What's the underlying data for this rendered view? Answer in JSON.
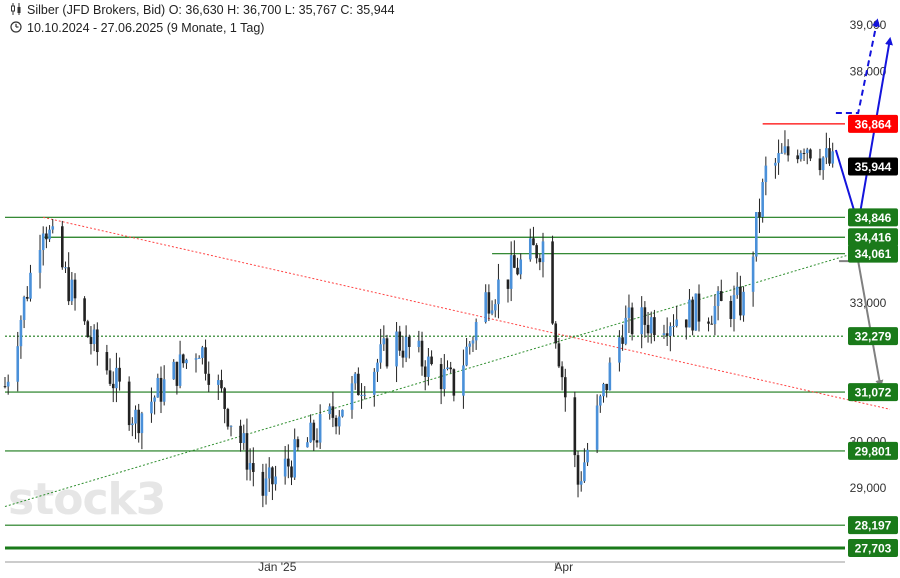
{
  "header": {
    "line1": "Silber (JFD Brokers, Bid)  O: 36,630  H: 36,700  L: 35,767  C: 35,944",
    "line2": "10.10.2024 - 27.06.2025  (9 Monate, 1 Tag)"
  },
  "watermark": "stock3",
  "chart_data": {
    "type": "candlestick",
    "instrument": "Silber (JFD Brokers, Bid)",
    "ohlc_last": {
      "open": 36.63,
      "high": 36.7,
      "low": 35.767,
      "close": 35.944
    },
    "period": "10.10.2024 - 27.06.2025",
    "ylim": [
      27.6,
      39.4
    ],
    "y_ticks": [
      {
        "value": 29.0,
        "label": "29,000"
      },
      {
        "value": 30.0,
        "label": "30,000"
      },
      {
        "value": 33.0,
        "label": "33,000"
      },
      {
        "value": 38.0,
        "label": "38,000"
      },
      {
        "value": 39.0,
        "label": "39,000"
      }
    ],
    "x_ticks": [
      {
        "date": "2025-01-01",
        "label": "Jan '25"
      },
      {
        "date": "2025-04-01",
        "label": "Apr"
      }
    ],
    "price_path": [
      {
        "date": "2024-10-10",
        "close": 31.2
      },
      {
        "date": "2024-10-22",
        "close": 34.8
      },
      {
        "date": "2024-11-05",
        "close": 32.3
      },
      {
        "date": "2024-11-20",
        "close": 30.5
      },
      {
        "date": "2024-12-10",
        "close": 32.1
      },
      {
        "date": "2024-12-30",
        "close": 28.9
      },
      {
        "date": "2025-01-20",
        "close": 30.5
      },
      {
        "date": "2025-02-10",
        "close": 32.2
      },
      {
        "date": "2025-02-28",
        "close": 31.2
      },
      {
        "date": "2025-03-10",
        "close": 33.1
      },
      {
        "date": "2025-03-28",
        "close": 34.3
      },
      {
        "date": "2025-04-08",
        "close": 29.1
      },
      {
        "date": "2025-04-22",
        "close": 32.5
      },
      {
        "date": "2025-05-15",
        "close": 32.8
      },
      {
        "date": "2025-05-30",
        "close": 33.0
      },
      {
        "date": "2025-06-06",
        "close": 35.8
      },
      {
        "date": "2025-06-18",
        "close": 36.5
      },
      {
        "date": "2025-06-27",
        "close": 35.944
      }
    ],
    "levels": [
      {
        "label": "36,864",
        "value": 36.864,
        "color": "#ff0000"
      },
      {
        "label": "35,944",
        "value": 35.944,
        "color": "#000000"
      },
      {
        "label": "34,846",
        "value": 34.846,
        "color": "#1a7a1a"
      },
      {
        "label": "34,416",
        "value": 34.416,
        "color": "#1a7a1a"
      },
      {
        "label": "34,061",
        "value": 34.061,
        "color": "#1a7a1a"
      },
      {
        "label": "32,279",
        "value": 32.279,
        "color": "#1a7a1a"
      },
      {
        "label": "31,072",
        "value": 31.072,
        "color": "#1a7a1a"
      },
      {
        "label": "29,801",
        "value": 29.801,
        "color": "#1a7a1a"
      },
      {
        "label": "28,197",
        "value": 28.197,
        "color": "#1a7a1a"
      },
      {
        "label": "27,703",
        "value": 27.703,
        "color": "#1a7a1a"
      }
    ],
    "trendlines": [
      {
        "color": "#ff4444",
        "style": "dotted",
        "from": {
          "date": "2024-10-22",
          "value": 34.846
        },
        "to": {
          "date": "2025-07-15",
          "value": 30.7
        }
      },
      {
        "color": "#2f8f2f",
        "style": "dotted",
        "from": {
          "date": "2024-10-10",
          "value": 28.6
        },
        "to": {
          "date": "2025-07-15",
          "value": 34.3
        }
      }
    ],
    "scenarios": [
      {
        "color": "#1414dc",
        "style": "solid",
        "path": [
          {
            "date": "2025-06-28",
            "value": 36.3
          },
          {
            "date": "2025-07-05",
            "value": 34.7
          },
          {
            "date": "2025-07-15",
            "value": 38.7
          }
        ]
      },
      {
        "color": "#1414dc",
        "style": "dashed",
        "path": [
          {
            "date": "2025-06-28",
            "value": 37.1
          },
          {
            "date": "2025-07-05",
            "value": 37.1
          },
          {
            "date": "2025-07-11",
            "value": 39.1
          }
        ]
      },
      {
        "color": "#808080",
        "style": "solid",
        "path": [
          {
            "date": "2025-06-29",
            "value": 33.9
          },
          {
            "date": "2025-07-05",
            "value": 33.9
          },
          {
            "date": "2025-07-12",
            "value": 31.2
          }
        ]
      }
    ],
    "grid": false,
    "legend": "none"
  }
}
